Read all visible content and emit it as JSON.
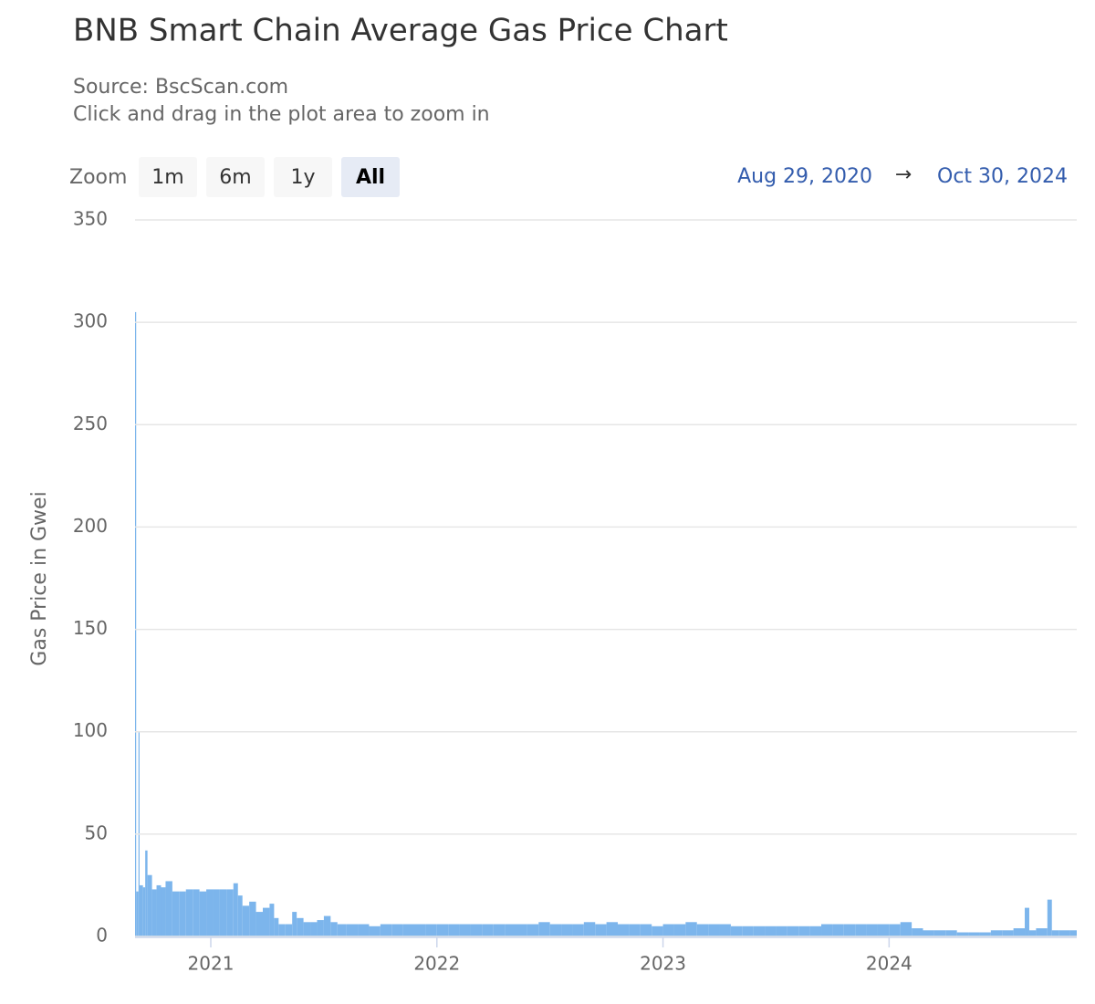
{
  "chart_data": {
    "type": "column",
    "title": "BNB Smart Chain Average Gas Price Chart",
    "subtitle": [
      "Source: BscScan.com",
      "Click and drag in the plot area to zoom in"
    ],
    "range_selector": {
      "label": "Zoom",
      "buttons": [
        "1m",
        "6m",
        "1y",
        "All"
      ],
      "selected": 3,
      "from": "Aug 29, 2020",
      "arrow": "→",
      "to": "Oct 30, 2024"
    },
    "y_label": "Gas Price in Gwei",
    "color": "#7cb5ec",
    "grid": true,
    "xlim": [
      2020.665,
      2024.83
    ],
    "xticks": [
      2021,
      2022,
      2023,
      2024
    ],
    "ylim": [
      0,
      350
    ],
    "yticks": [
      0,
      50,
      100,
      150,
      200,
      250,
      300,
      350
    ],
    "x": [
      2020.66,
      2020.665,
      2020.67,
      2020.68,
      2020.685,
      2020.7,
      2020.71,
      2020.72,
      2020.74,
      2020.76,
      2020.78,
      2020.8,
      2020.83,
      2020.86,
      2020.89,
      2020.92,
      2020.95,
      2020.98,
      2021.01,
      2021.04,
      2021.07,
      2021.1,
      2021.12,
      2021.14,
      2021.17,
      2021.2,
      2021.23,
      2021.26,
      2021.28,
      2021.3,
      2021.33,
      2021.36,
      2021.38,
      2021.41,
      2021.44,
      2021.47,
      2021.5,
      2021.53,
      2021.56,
      2021.6,
      2021.65,
      2021.7,
      2021.75,
      2021.8,
      2021.85,
      2021.9,
      2021.95,
      2022.0,
      2022.05,
      2022.1,
      2022.15,
      2022.2,
      2022.25,
      2022.3,
      2022.35,
      2022.4,
      2022.45,
      2022.5,
      2022.55,
      2022.6,
      2022.65,
      2022.7,
      2022.75,
      2022.8,
      2022.85,
      2022.9,
      2022.95,
      2023.0,
      2023.05,
      2023.1,
      2023.15,
      2023.2,
      2023.25,
      2023.3,
      2023.35,
      2023.4,
      2023.45,
      2023.5,
      2023.55,
      2023.6,
      2023.65,
      2023.7,
      2023.75,
      2023.8,
      2023.85,
      2023.9,
      2023.95,
      2024.0,
      2024.05,
      2024.1,
      2024.15,
      2024.2,
      2024.25,
      2024.3,
      2024.35,
      2024.4,
      2024.45,
      2024.5,
      2024.55,
      2024.6,
      2024.62,
      2024.65,
      2024.7,
      2024.72,
      2024.75,
      2024.8,
      2024.83
    ],
    "values": [
      27,
      305,
      22,
      100,
      25,
      24,
      42,
      30,
      23,
      25,
      24,
      27,
      22,
      22,
      23,
      23,
      22,
      23,
      23,
      23,
      23,
      26,
      20,
      15,
      17,
      12,
      14,
      16,
      9,
      6,
      6,
      12,
      9,
      7,
      7,
      8,
      10,
      7,
      6,
      6,
      6,
      5,
      6,
      6,
      6,
      6,
      6,
      6,
      6,
      6,
      6,
      6,
      6,
      6,
      6,
      6,
      7,
      6,
      6,
      6,
      7,
      6,
      7,
      6,
      6,
      6,
      5,
      6,
      6,
      7,
      6,
      6,
      6,
      5,
      5,
      5,
      5,
      5,
      5,
      5,
      5,
      6,
      6,
      6,
      6,
      6,
      6,
      6,
      7,
      4,
      3,
      3,
      3,
      2,
      2,
      2,
      3,
      3,
      4,
      14,
      3,
      4,
      18,
      3,
      3,
      3,
      3
    ]
  }
}
